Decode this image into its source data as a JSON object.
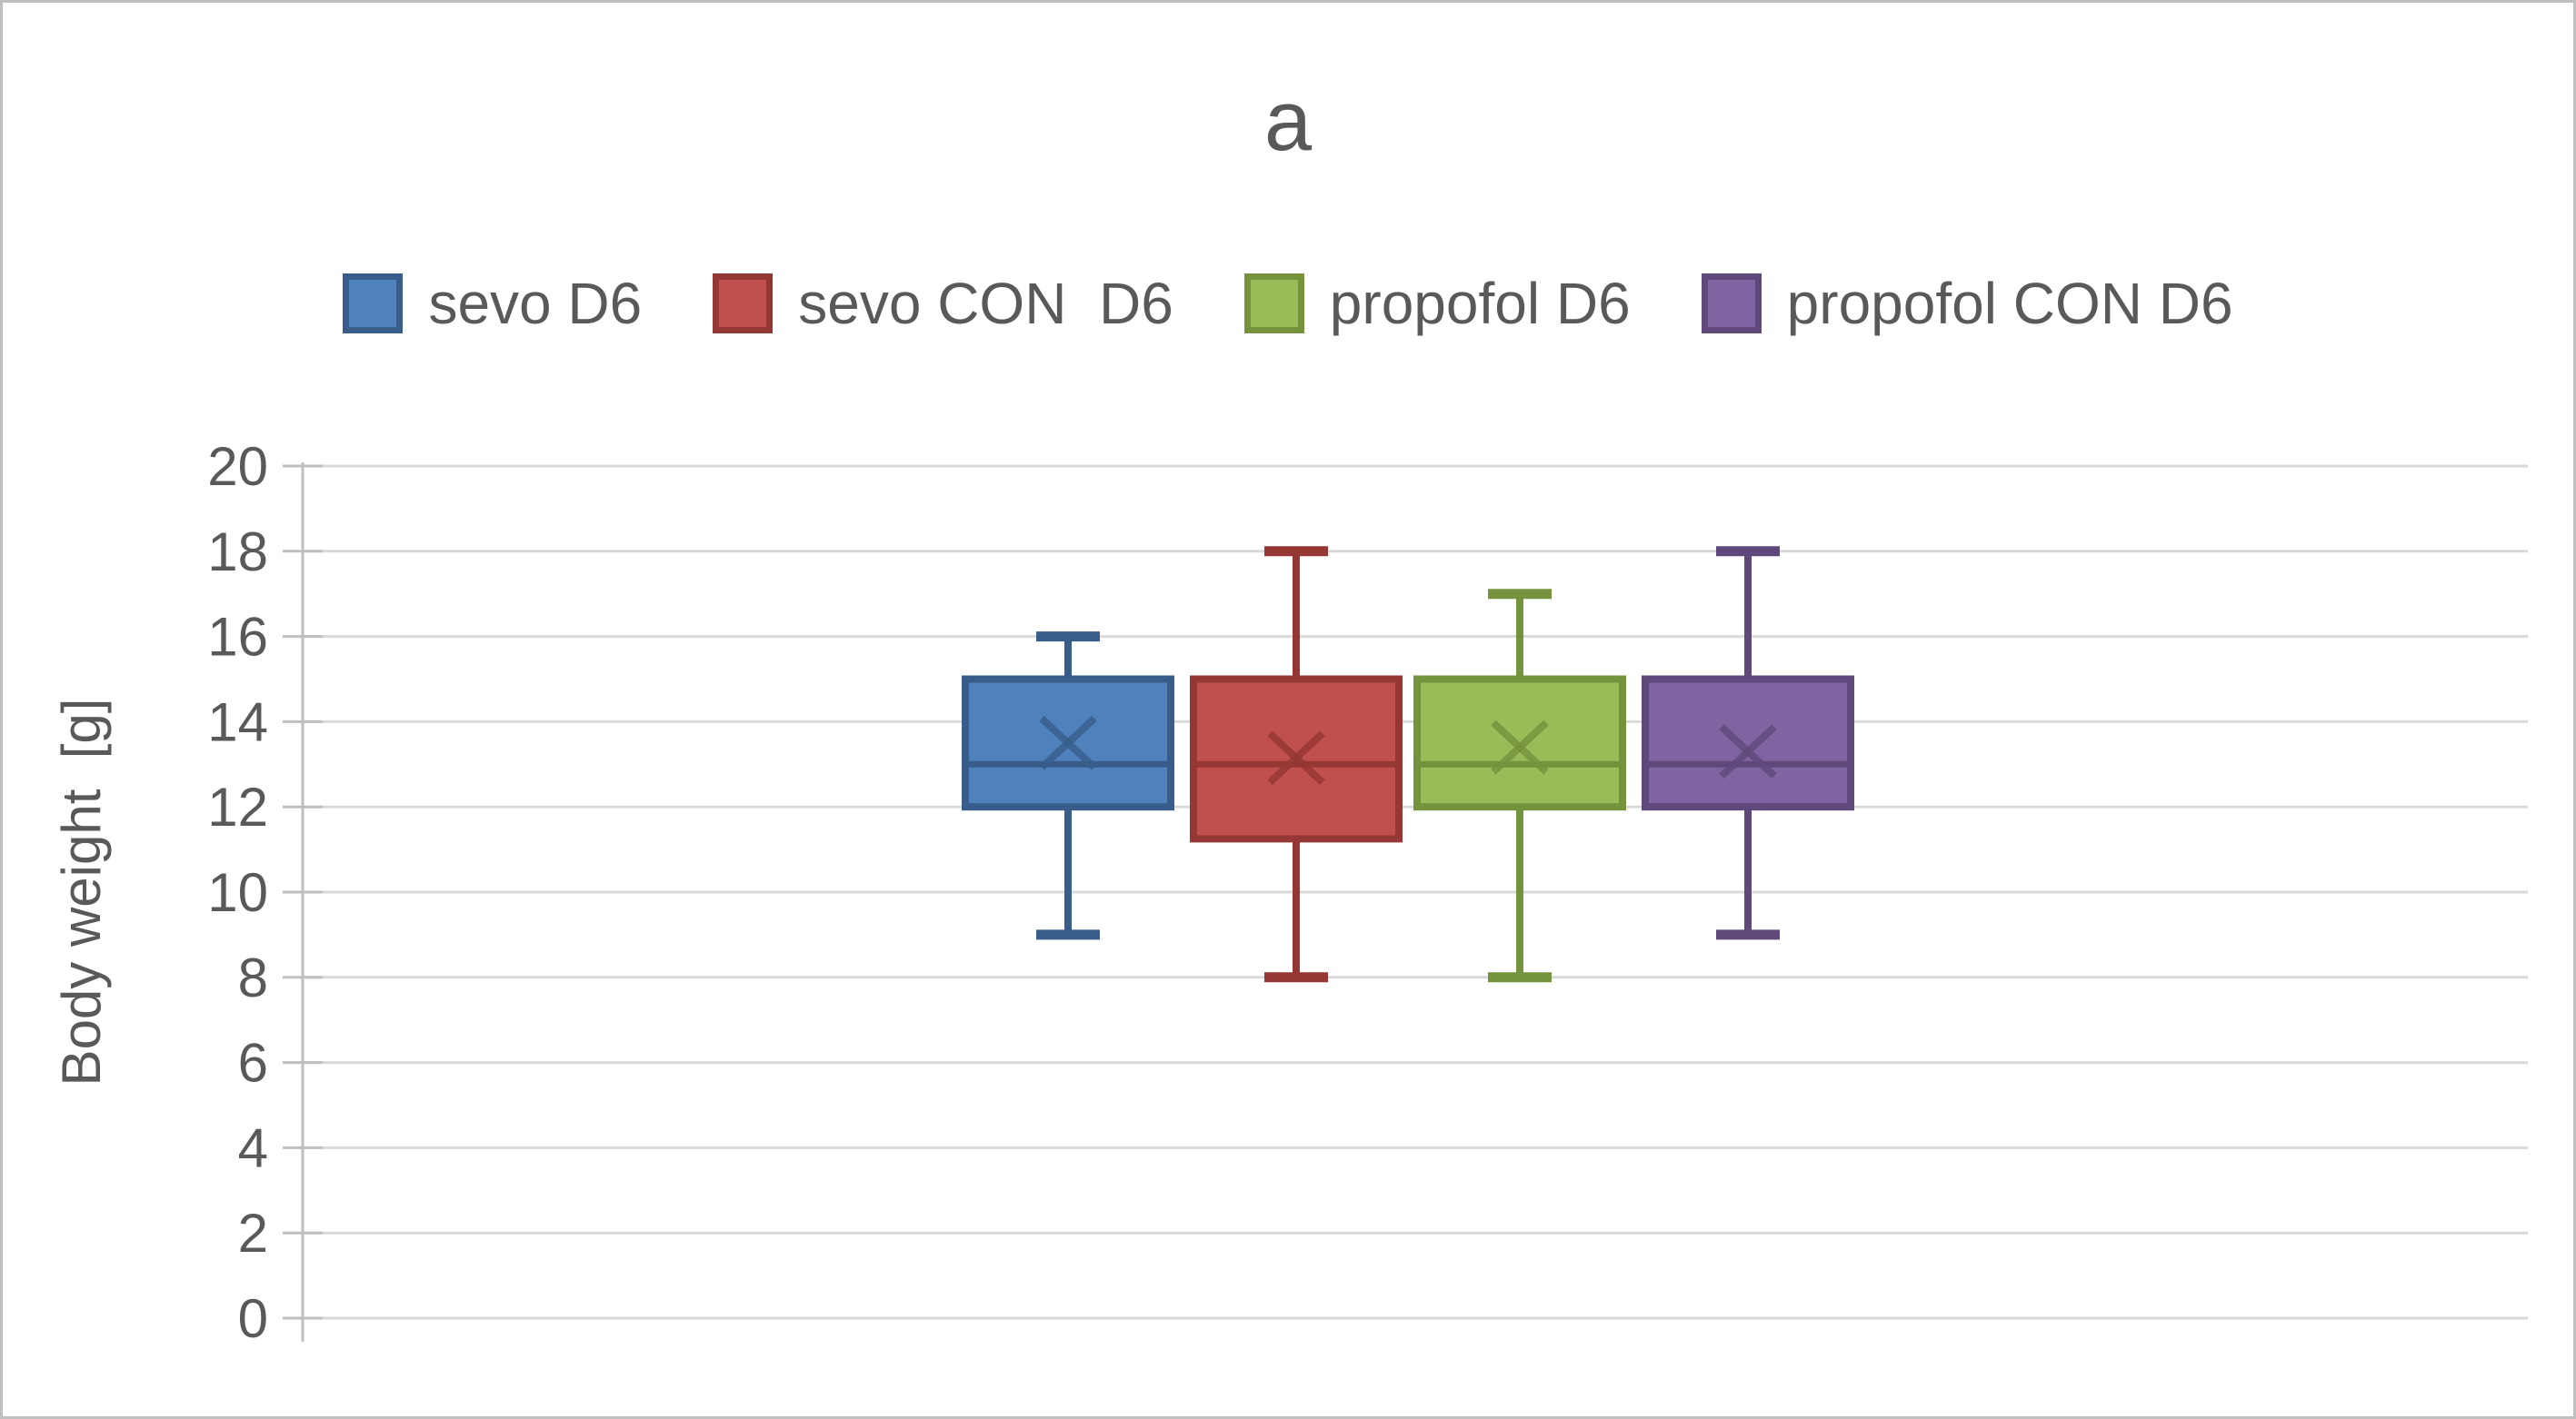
{
  "figure": {
    "panel_label": "a"
  },
  "y_axis": {
    "title": "Body weight  [g]",
    "tick_values": [
      0,
      2,
      4,
      6,
      8,
      10,
      12,
      14,
      16,
      18,
      20
    ]
  },
  "colors": {
    "text": "#595959",
    "gridline": "#D9D9D9",
    "axis_line": "#BFBFBF",
    "frame_border": "#BFBFBF",
    "background": "#FFFFFF"
  },
  "chart_data": {
    "type": "boxplot",
    "title": "a",
    "ylabel": "Body weight  [g]",
    "xlabel": "",
    "ylim": [
      0,
      20
    ],
    "ytick_step": 2,
    "grid": true,
    "legend_position": "top",
    "series": [
      {
        "name": "sevo D6",
        "color": "#4F81BD",
        "border": "#385D8A",
        "min": 9,
        "q1": 12,
        "median": 13,
        "mean": 13.5,
        "q3": 15,
        "max": 16
      },
      {
        "name": "sevo CON  D6",
        "color": "#C0504D",
        "border": "#953734",
        "min": 8,
        "q1": 11.25,
        "median": 13,
        "mean": 13.15,
        "q3": 15,
        "max": 18
      },
      {
        "name": "propofol D6",
        "color": "#9BBB59",
        "border": "#75923C",
        "min": 8,
        "q1": 12,
        "median": 13,
        "mean": 13.4,
        "q3": 15,
        "max": 17
      },
      {
        "name": "propofol CON D6",
        "color": "#8064A2",
        "border": "#5F497A",
        "min": 9,
        "q1": 12,
        "median": 13,
        "mean": 13.3,
        "q3": 15,
        "max": 18
      }
    ]
  }
}
